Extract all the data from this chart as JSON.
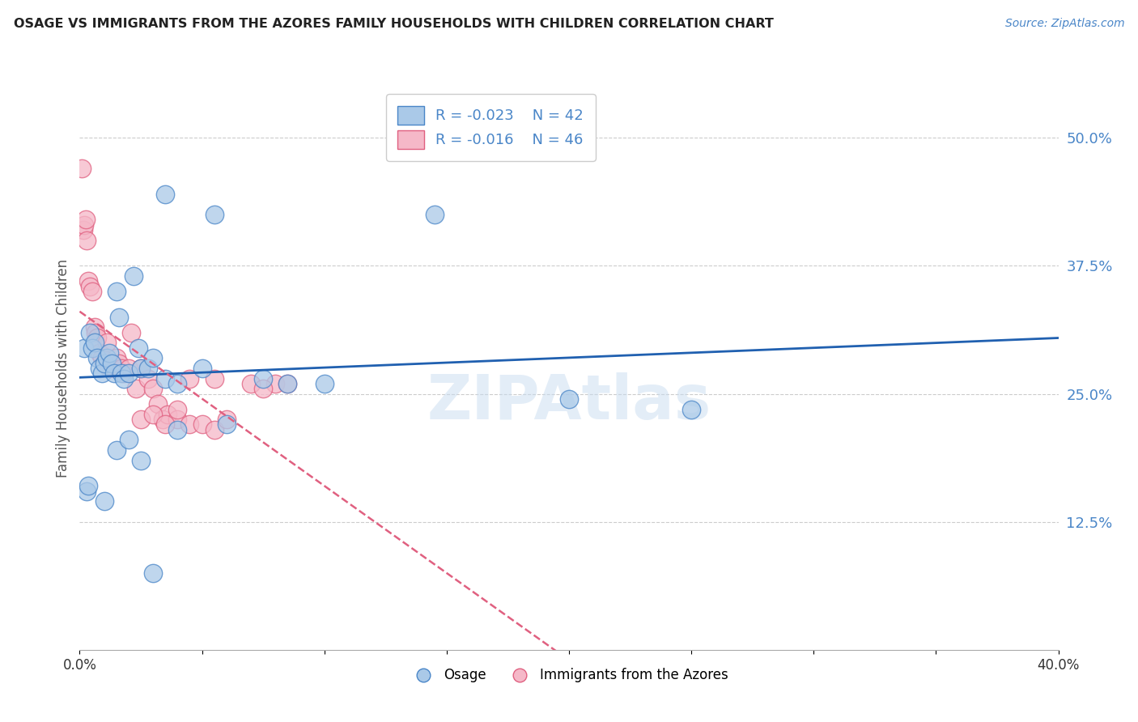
{
  "title": "OSAGE VS IMMIGRANTS FROM THE AZORES FAMILY HOUSEHOLDS WITH CHILDREN CORRELATION CHART",
  "source": "Source: ZipAtlas.com",
  "ylabel": "Family Households with Children",
  "xlim": [
    0.0,
    40.0
  ],
  "ylim": [
    0.0,
    55.0
  ],
  "yticks": [
    12.5,
    25.0,
    37.5,
    50.0
  ],
  "ytick_labels": [
    "12.5%",
    "25.0%",
    "37.5%",
    "50.0%"
  ],
  "legend_r1": "-0.023",
  "legend_n1": "42",
  "legend_r2": "-0.016",
  "legend_n2": "46",
  "osage_color": "#aac9e8",
  "azores_color": "#f5b8c8",
  "osage_edge_color": "#4a86c8",
  "azores_edge_color": "#e06080",
  "osage_line_color": "#2060b0",
  "azores_line_color": "#e06080",
  "watermark": "ZIPAtlas",
  "background_color": "#ffffff",
  "grid_color": "#cccccc",
  "osage_x": [
    1.5,
    2.2,
    3.5,
    5.5,
    0.2,
    0.4,
    0.5,
    0.6,
    0.7,
    0.8,
    0.9,
    1.0,
    1.1,
    1.2,
    1.3,
    1.4,
    1.6,
    1.7,
    1.8,
    2.0,
    2.4,
    2.5,
    2.8,
    3.0,
    3.5,
    4.0,
    5.0,
    6.0,
    7.5,
    8.5,
    10.0,
    14.5,
    20.0,
    25.0,
    0.3,
    0.35,
    1.0,
    1.5,
    2.0,
    2.5,
    3.0,
    4.0
  ],
  "osage_y": [
    35.0,
    36.5,
    44.5,
    42.5,
    29.5,
    31.0,
    29.5,
    30.0,
    28.5,
    27.5,
    27.0,
    28.0,
    28.5,
    29.0,
    28.0,
    27.0,
    32.5,
    27.0,
    26.5,
    27.0,
    29.5,
    27.5,
    27.5,
    28.5,
    26.5,
    26.0,
    27.5,
    22.0,
    26.5,
    26.0,
    26.0,
    42.5,
    24.5,
    23.5,
    15.5,
    16.0,
    14.5,
    19.5,
    20.5,
    18.5,
    7.5,
    21.5
  ],
  "azores_x": [
    0.1,
    0.15,
    0.2,
    0.25,
    0.3,
    0.35,
    0.4,
    0.5,
    0.6,
    0.65,
    0.7,
    0.8,
    0.9,
    1.0,
    1.1,
    1.2,
    1.3,
    1.4,
    1.5,
    1.6,
    1.7,
    1.8,
    2.0,
    2.1,
    2.3,
    2.5,
    2.8,
    3.0,
    3.2,
    3.4,
    3.6,
    4.0,
    4.5,
    5.5,
    7.0,
    8.0,
    2.5,
    3.0,
    3.5,
    4.0,
    4.5,
    5.0,
    5.5,
    6.0,
    7.5,
    8.5
  ],
  "azores_y": [
    47.0,
    41.0,
    41.5,
    42.0,
    40.0,
    36.0,
    35.5,
    35.0,
    31.5,
    31.0,
    30.5,
    29.0,
    28.5,
    28.0,
    30.0,
    27.5,
    28.0,
    27.5,
    28.5,
    28.0,
    27.5,
    27.0,
    27.5,
    31.0,
    25.5,
    27.5,
    26.5,
    25.5,
    24.0,
    22.5,
    23.0,
    22.5,
    26.5,
    26.5,
    26.0,
    26.0,
    22.5,
    23.0,
    22.0,
    23.5,
    22.0,
    22.0,
    21.5,
    22.5,
    25.5,
    26.0
  ]
}
